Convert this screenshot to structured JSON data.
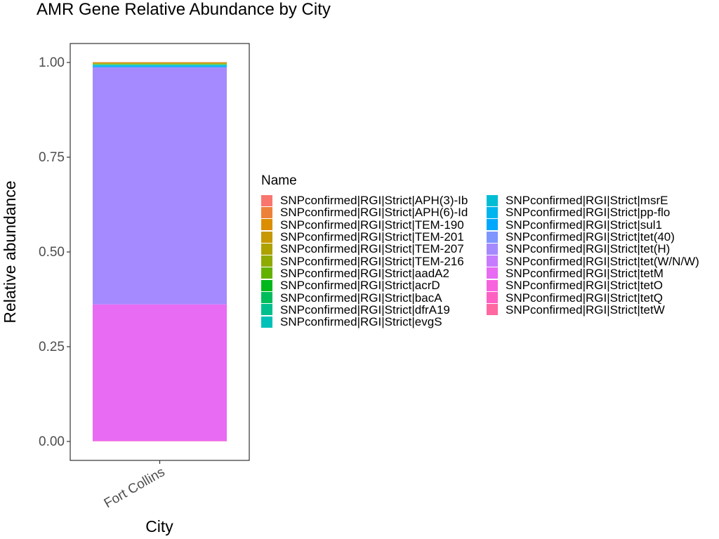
{
  "chart_data": {
    "type": "bar",
    "stacked": true,
    "title": "AMR Gene Relative Abundance by City",
    "xlabel": "City",
    "ylabel": "Relative abundance",
    "categories": [
      "Fort Collins"
    ],
    "ylim": [
      0,
      1
    ],
    "yticks": [
      "0.00",
      "0.25",
      "0.50",
      "0.75",
      "1.00"
    ],
    "grid": false,
    "legend_title": "Name",
    "legend_position": "right",
    "series": [
      {
        "name": "SNPconfirmed|RGI|Strict|APH(3)-Ib",
        "color": "#F8766D",
        "values": [
          0.0005
        ]
      },
      {
        "name": "SNPconfirmed|RGI|Strict|APH(6)-Id",
        "color": "#EC8239",
        "values": [
          0.0005
        ]
      },
      {
        "name": "SNPconfirmed|RGI|Strict|TEM-190",
        "color": "#DB8E00",
        "values": [
          0.001
        ]
      },
      {
        "name": "SNPconfirmed|RGI|Strict|TEM-201",
        "color": "#C79800",
        "values": [
          0.001
        ]
      },
      {
        "name": "SNPconfirmed|RGI|Strict|TEM-207",
        "color": "#AEA200",
        "values": [
          0.001
        ]
      },
      {
        "name": "SNPconfirmed|RGI|Strict|TEM-216",
        "color": "#8FAA00",
        "values": [
          0.001
        ]
      },
      {
        "name": "SNPconfirmed|RGI|Strict|aadA2",
        "color": "#64B200",
        "values": [
          0.001
        ]
      },
      {
        "name": "SNPconfirmed|RGI|Strict|acrD",
        "color": "#00B81B",
        "values": [
          0.0005
        ]
      },
      {
        "name": "SNPconfirmed|RGI|Strict|bacA",
        "color": "#00BD5C",
        "values": [
          0.0005
        ]
      },
      {
        "name": "SNPconfirmed|RGI|Strict|dfrA19",
        "color": "#00C08E",
        "values": [
          0.0005
        ]
      },
      {
        "name": "SNPconfirmed|RGI|Strict|evgS",
        "color": "#00C1B7",
        "values": [
          0.0005
        ]
      },
      {
        "name": "SNPconfirmed|RGI|Strict|msrE",
        "color": "#00BDD4",
        "values": [
          0.0015
        ]
      },
      {
        "name": "SNPconfirmed|RGI|Strict|pp-flo",
        "color": "#00B5EE",
        "values": [
          0.0015
        ]
      },
      {
        "name": "SNPconfirmed|RGI|Strict|sul1",
        "color": "#00A7FF",
        "values": [
          0.002
        ]
      },
      {
        "name": "SNPconfirmed|RGI|Strict|tet(40)",
        "color": "#7F96FF",
        "values": [
          0.002
        ]
      },
      {
        "name": "SNPconfirmed|RGI|Strict|tet(H)",
        "color": "#A58AFF",
        "values": [
          0.624
        ]
      },
      {
        "name": "SNPconfirmed|RGI|Strict|tet(W/N/W)",
        "color": "#C77CFF",
        "values": [
          0.0005
        ]
      },
      {
        "name": "SNPconfirmed|RGI|Strict|tetM",
        "color": "#E76BF3",
        "values": [
          0.36
        ]
      },
      {
        "name": "SNPconfirmed|RGI|Strict|tetO",
        "color": "#F962DD",
        "values": [
          0.0005
        ]
      },
      {
        "name": "SNPconfirmed|RGI|Strict|tetQ",
        "color": "#FF61C3",
        "values": [
          0.0005
        ]
      },
      {
        "name": "SNPconfirmed|RGI|Strict|tetW",
        "color": "#FF68A1",
        "values": [
          0.0005
        ]
      }
    ]
  }
}
